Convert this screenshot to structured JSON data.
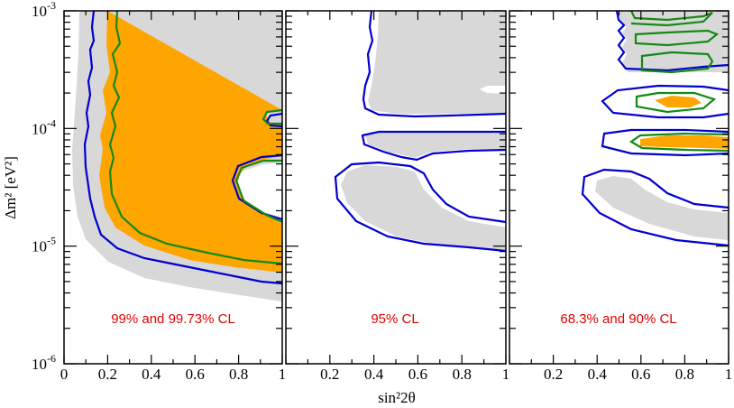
{
  "chart_data": {
    "type": "contour",
    "xlabel": "sin²2θ",
    "ylabel": "Δm² [eV²]",
    "xlim": [
      0,
      1
    ],
    "ylim": [
      1e-06,
      0.001
    ],
    "yscale": "log",
    "x_ticks": [
      "0",
      "0.2",
      "0.4",
      "0.6",
      "0.8",
      "1"
    ],
    "y_ticks": [
      "10-6",
      "10-5",
      "10-4",
      "10-3"
    ],
    "colors": {
      "gray": "#d8d8d8",
      "orange": "#ffa500",
      "blue": "#0000d0",
      "green": "#138a13",
      "label": "#e00000"
    },
    "panels": [
      {
        "label": "99% and 99.73% CL",
        "regions": [
          {
            "kind": "fill",
            "color": "gray",
            "boundary": [
              [
                0.08,
                0.001
              ],
              [
                0.06,
                4e-05
              ],
              [
                0.11,
                1.2e-05
              ],
              [
                0.25,
                6.5e-06
              ],
              [
                0.55,
                4.5e-06
              ],
              [
                1.0,
                3.2e-06
              ],
              [
                1.0,
                0.001
              ]
            ]
          },
          {
            "kind": "fill",
            "color": "orange",
            "boundary": [
              [
                0.19,
                0.001
              ],
              [
                0.19,
                0.0001
              ],
              [
                0.18,
                2.5e-05
              ],
              [
                0.3,
                1.3e-05
              ],
              [
                0.55,
                8.5e-06
              ],
              [
                1.0,
                5.8e-06
              ],
              [
                1.0,
                4e-05
              ],
              [
                0.75,
                3e-05
              ],
              [
                0.72,
                4.5e-05
              ],
              [
                1.0,
                6.2e-05
              ],
              [
                1.0,
                0.00012
              ],
              [
                0.9,
                0.0001
              ],
              [
                1.0,
                8e-05
              ],
              [
                1.0,
                0.001
              ]
            ]
          },
          {
            "kind": "contour",
            "color": "blue",
            "boundary": [
              [
                0.14,
                0.001
              ],
              [
                0.12,
                0.0001
              ],
              [
                0.12,
                2e-05
              ],
              [
                0.2,
                9.5e-06
              ],
              [
                0.5,
                6.2e-06
              ],
              [
                1.0,
                4.5e-06
              ]
            ]
          },
          {
            "kind": "contour",
            "color": "blue",
            "boundary": [
              [
                1.0,
                7.5e-05
              ],
              [
                0.82,
                4e-05
              ],
              [
                0.9,
                3e-05
              ],
              [
                1.0,
                2.7e-05
              ]
            ]
          },
          {
            "kind": "contour",
            "color": "green",
            "boundary": [
              [
                0.22,
                0.001
              ],
              [
                0.22,
                0.0001
              ],
              [
                0.2,
                3e-05
              ],
              [
                0.3,
                1.5e-05
              ],
              [
                0.6,
                8.5e-06
              ],
              [
                1.0,
                6.3e-06
              ]
            ]
          },
          {
            "kind": "contour",
            "color": "green",
            "boundary": [
              [
                1.0,
                0.00013
              ],
              [
                0.88,
                0.0001
              ],
              [
                1.0,
                9e-05
              ]
            ]
          }
        ]
      },
      {
        "label": "95% CL",
        "regions": [
          {
            "kind": "fill",
            "color": "gray",
            "boundary": [
              [
                0.42,
                0.001
              ],
              [
                0.38,
                0.0002
              ],
              [
                0.42,
                0.00013
              ],
              [
                1.0,
                0.00013
              ],
              [
                1.0,
                0.001
              ]
            ]
          },
          {
            "kind": "contour",
            "color": "blue",
            "boundary": [
              [
                0.4,
                0.001
              ],
              [
                0.36,
                0.0002
              ],
              [
                0.4,
                0.00013
              ],
              [
                1.0,
                0.00013
              ]
            ]
          },
          {
            "kind": "contour",
            "color": "blue",
            "boundary": [
              [
                1.0,
                9e-05
              ],
              [
                0.4,
                9e-05
              ],
              [
                0.38,
                7e-05
              ],
              [
                0.5,
                5e-05
              ],
              [
                0.6,
                6e-05
              ],
              [
                1.0,
                5.5e-05
              ]
            ]
          },
          {
            "kind": "contour",
            "color": "blue",
            "boundary": [
              [
                1.0,
                1.8e-05
              ],
              [
                0.6,
                2.5e-05
              ],
              [
                0.5,
                4e-05
              ],
              [
                0.3,
                3.5e-05
              ],
              [
                0.3,
                1.5e-05
              ],
              [
                1.0,
                8.5e-06
              ]
            ]
          }
        ]
      },
      {
        "label": "68.3% and 90% CL",
        "regions": [
          {
            "kind": "fill",
            "color": "gray",
            "boundary": [
              [
                1.0,
                2e-05
              ],
              [
                0.6,
                3e-05
              ],
              [
                0.4,
                2.8e-05
              ],
              [
                0.6,
                1.2e-05
              ],
              [
                1.0,
                8.5e-06
              ]
            ]
          },
          {
            "kind": "fill",
            "color": "orange",
            "boundary": [
              [
                0.68,
                0.00019
              ],
              [
                0.8,
                0.00017
              ],
              [
                0.68,
                0.00016
              ]
            ]
          },
          {
            "kind": "fill",
            "color": "orange",
            "boundary": [
              [
                0.63,
                8e-05
              ],
              [
                1.0,
                8.5e-05
              ],
              [
                1.0,
                6e-05
              ],
              [
                0.63,
                7e-05
              ]
            ]
          },
          {
            "kind": "contour",
            "color": "blue",
            "boundary": [
              [
                1.0,
                9e-05
              ],
              [
                0.45,
                9e-05
              ],
              [
                0.42,
                7e-05
              ],
              [
                1.0,
                6e-05
              ]
            ]
          },
          {
            "kind": "contour",
            "color": "blue",
            "boundary": [
              [
                1.0,
                2.5e-05
              ],
              [
                0.6,
                3.5e-05
              ],
              [
                0.35,
                3.5e-05
              ],
              [
                0.5,
                1.2e-05
              ],
              [
                1.0,
                9.5e-06
              ]
            ]
          },
          {
            "kind": "contour",
            "color": "blue",
            "boundary": [
              [
                0.6,
                0.0002
              ],
              [
                0.9,
                0.00022
              ],
              [
                1.0,
                0.00018
              ],
              [
                0.9,
                0.00013
              ],
              [
                0.6,
                0.00014
              ]
            ]
          },
          {
            "kind": "contour",
            "color": "green",
            "boundary": [
              [
                0.65,
                0.00019
              ],
              [
                0.82,
                0.0002
              ],
              [
                0.85,
                0.00017
              ],
              [
                0.65,
                0.00016
              ]
            ]
          },
          {
            "kind": "contour",
            "color": "green",
            "boundary": [
              [
                0.58,
                8e-05
              ],
              [
                1.0,
                8.8e-05
              ],
              [
                1.0,
                6.5e-05
              ],
              [
                0.58,
                7e-05
              ]
            ]
          }
        ]
      }
    ]
  }
}
